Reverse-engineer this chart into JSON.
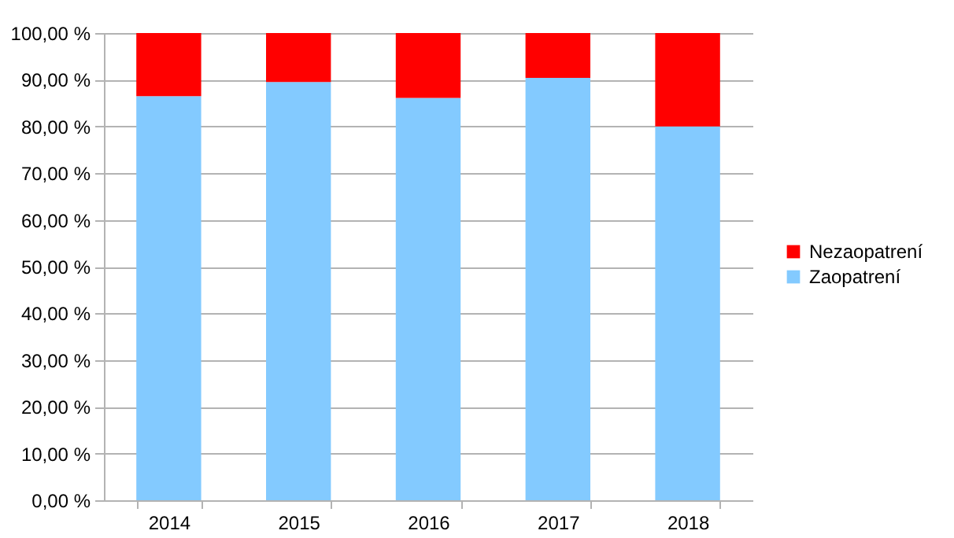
{
  "chart_data": {
    "type": "bar",
    "stacked": true,
    "categories": [
      "2014",
      "2015",
      "2016",
      "2017",
      "2018"
    ],
    "series": [
      {
        "name": "Zaopatrení",
        "color": "#83caff",
        "values": [
          86.5,
          89.5,
          86.1,
          90.4,
          80.0
        ]
      },
      {
        "name": "Nezaopatrení",
        "color": "#ff0000",
        "values": [
          13.5,
          10.5,
          13.9,
          9.6,
          20.0
        ]
      }
    ],
    "ylim": [
      0,
      100
    ],
    "yticks": [
      {
        "value": 0,
        "label": "0,00 %"
      },
      {
        "value": 10,
        "label": "10,00 %"
      },
      {
        "value": 20,
        "label": "20,00 %"
      },
      {
        "value": 30,
        "label": "30,00 %"
      },
      {
        "value": 40,
        "label": "40,00 %"
      },
      {
        "value": 50,
        "label": "50,00 %"
      },
      {
        "value": 60,
        "label": "60,00 %"
      },
      {
        "value": 70,
        "label": "70,00 %"
      },
      {
        "value": 80,
        "label": "80,00 %"
      },
      {
        "value": 90,
        "label": "90,00 %"
      },
      {
        "value": 100,
        "label": "100,00 %"
      }
    ],
    "grid": "y",
    "legend": "right"
  }
}
